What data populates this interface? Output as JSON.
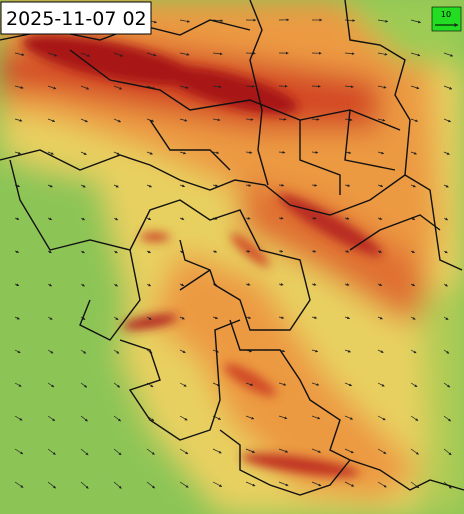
{
  "header": {
    "timestamp": "2025-11-07 02"
  },
  "legend": {
    "label": "10"
  }
}
